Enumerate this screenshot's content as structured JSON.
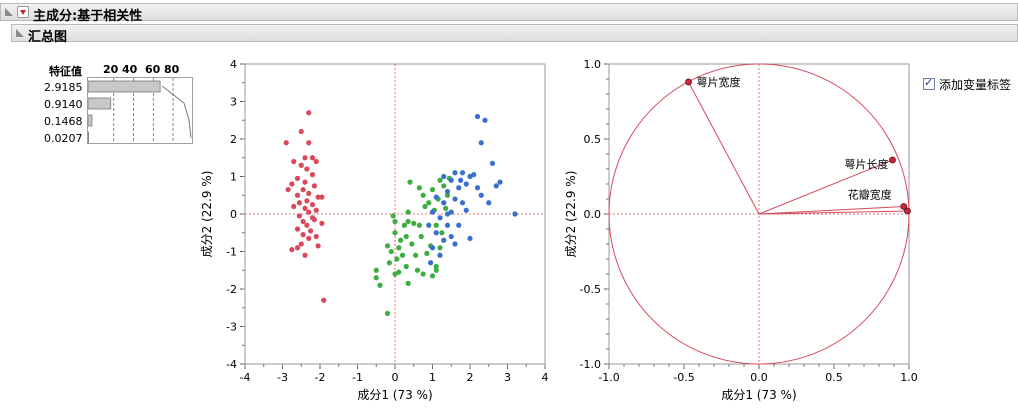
{
  "header": {
    "title": "主成分:基于相关性"
  },
  "section": {
    "title": "汇总图"
  },
  "eigen": {
    "header": "特征值",
    "scale_ticks": [
      "20",
      "40",
      "60",
      "80"
    ],
    "values": [
      "2.9185",
      "0.9140",
      "0.1468",
      "0.0207"
    ],
    "percents": [
      73,
      23,
      4,
      0.5
    ]
  },
  "checkbox": {
    "label": "添加变量标签",
    "checked": true
  },
  "chart_data": [
    {
      "type": "scatter",
      "xlabel": "成分1 (73 %)",
      "ylabel": "成分2 (22.9 %)",
      "xlim": [
        -4,
        4
      ],
      "ylim": [
        -4,
        4
      ],
      "xticks": [
        "-4",
        "-3",
        "-2",
        "-1",
        "0",
        "1",
        "2",
        "3",
        "4"
      ],
      "yticks": [
        "-4",
        "-3",
        "-2",
        "-1",
        "0",
        "1",
        "2",
        "3",
        "4"
      ],
      "series": [
        {
          "color": "#d9495b",
          "points": [
            [
              -2.3,
              2.7
            ],
            [
              -2.5,
              2.2
            ],
            [
              -2.3,
              1.9
            ],
            [
              -2.9,
              1.9
            ],
            [
              -2.2,
              1.5
            ],
            [
              -2.4,
              1.5
            ],
            [
              -2.7,
              1.4
            ],
            [
              -2.5,
              1.3
            ],
            [
              -2.1,
              1.4
            ],
            [
              -2.35,
              1.2
            ],
            [
              -2.2,
              1.05
            ],
            [
              -2.6,
              0.95
            ],
            [
              -2.4,
              0.85
            ],
            [
              -2.75,
              0.8
            ],
            [
              -2.15,
              0.75
            ],
            [
              -2.45,
              0.65
            ],
            [
              -2.3,
              0.55
            ],
            [
              -2.6,
              0.5
            ],
            [
              -2.05,
              0.45
            ],
            [
              -1.95,
              0.45
            ],
            [
              -2.35,
              0.35
            ],
            [
              -2.55,
              0.3
            ],
            [
              -2.2,
              0.25
            ],
            [
              -2.7,
              0.2
            ],
            [
              -2.4,
              0.15
            ],
            [
              -2.1,
              0.1
            ],
            [
              -2.3,
              0.05
            ],
            [
              -2.55,
              -0.05
            ],
            [
              -2.2,
              -0.1
            ],
            [
              -2.45,
              -0.2
            ],
            [
              -1.95,
              -0.25
            ],
            [
              -2.35,
              -0.3
            ],
            [
              -2.6,
              -0.4
            ],
            [
              -2.25,
              -0.45
            ],
            [
              -2.45,
              -0.55
            ],
            [
              -2.1,
              -0.6
            ],
            [
              -2.3,
              -0.65
            ],
            [
              -2.5,
              -0.8
            ],
            [
              -2.05,
              -0.85
            ],
            [
              -2.75,
              -0.95
            ],
            [
              -2.6,
              -0.9
            ],
            [
              -2.4,
              -1.1
            ],
            [
              -1.9,
              -2.3
            ],
            [
              -2.85,
              0.65
            ],
            [
              -2.15,
              -0.15
            ]
          ]
        },
        {
          "color": "#3dad3d",
          "points": [
            [
              -0.5,
              -1.5
            ],
            [
              -0.5,
              -1.7
            ],
            [
              -0.4,
              -1.9
            ],
            [
              -0.2,
              -2.65
            ],
            [
              -0.2,
              -0.85
            ],
            [
              -0.15,
              -1.3
            ],
            [
              -0.1,
              -1.0
            ],
            [
              0.0,
              -1.6
            ],
            [
              0.0,
              -0.2
            ],
            [
              0.0,
              -0.5
            ],
            [
              0.05,
              -1.2
            ],
            [
              0.1,
              -1.55
            ],
            [
              0.1,
              -0.9
            ],
            [
              0.15,
              -0.7
            ],
            [
              0.2,
              -1.1
            ],
            [
              0.25,
              -0.3
            ],
            [
              0.3,
              -1.4
            ],
            [
              0.3,
              -0.6
            ],
            [
              0.35,
              -0.2
            ],
            [
              0.35,
              -1.85
            ],
            [
              0.4,
              0.85
            ],
            [
              0.45,
              -0.8
            ],
            [
              0.5,
              -0.25
            ],
            [
              0.55,
              -1.1
            ],
            [
              0.6,
              -1.5
            ],
            [
              0.65,
              0.7
            ],
            [
              0.65,
              -0.3
            ],
            [
              0.7,
              -0.6
            ],
            [
              0.75,
              0.5
            ],
            [
              0.8,
              0.2
            ],
            [
              0.85,
              -1.05
            ],
            [
              0.9,
              0.3
            ],
            [
              0.95,
              -0.85
            ],
            [
              1.0,
              0.65
            ],
            [
              1.05,
              0.1
            ],
            [
              1.1,
              -1.4
            ],
            [
              1.1,
              -0.3
            ],
            [
              1.15,
              0.4
            ],
            [
              1.2,
              0.9
            ],
            [
              1.25,
              -0.5
            ],
            [
              1.3,
              0.75
            ],
            [
              1.35,
              0.15
            ],
            [
              1.4,
              0.5
            ],
            [
              1.1,
              -1.5
            ],
            [
              0.75,
              -1.6
            ],
            [
              0.35,
              0.05
            ],
            [
              -0.05,
              -0.05
            ],
            [
              1.0,
              -1.65
            ],
            [
              1.2,
              -0.9
            ],
            [
              1.45,
              0.95
            ]
          ]
        },
        {
          "color": "#3a6fd0",
          "points": [
            [
              2.2,
              2.6
            ],
            [
              2.4,
              2.5
            ],
            [
              2.3,
              1.9
            ],
            [
              2.6,
              1.35
            ],
            [
              2.8,
              0.85
            ],
            [
              2.7,
              0.75
            ],
            [
              2.0,
              1.0
            ],
            [
              2.3,
              0.5
            ],
            [
              2.5,
              0.3
            ],
            [
              3.2,
              0.0
            ],
            [
              1.8,
              1.1
            ],
            [
              1.9,
              0.8
            ],
            [
              1.6,
              1.1
            ],
            [
              1.5,
              0.9
            ],
            [
              1.7,
              0.7
            ],
            [
              1.4,
              0.6
            ],
            [
              1.6,
              0.4
            ],
            [
              1.3,
              0.3
            ],
            [
              1.8,
              0.3
            ],
            [
              1.5,
              0.05
            ],
            [
              1.9,
              0.1
            ],
            [
              1.2,
              -0.1
            ],
            [
              1.4,
              -0.3
            ],
            [
              1.7,
              -0.3
            ],
            [
              1.1,
              -0.5
            ],
            [
              1.3,
              -0.7
            ],
            [
              1.5,
              -0.6
            ],
            [
              1.0,
              -0.9
            ],
            [
              1.2,
              -1.1
            ],
            [
              1.6,
              -0.8
            ],
            [
              2.0,
              -0.65
            ],
            [
              2.2,
              0.7
            ],
            [
              1.1,
              0.45
            ],
            [
              1.0,
              0.05
            ],
            [
              0.9,
              -0.3
            ],
            [
              1.75,
              0.9
            ],
            [
              2.1,
              1.05
            ],
            [
              1.3,
              1.0
            ],
            [
              0.95,
              -1.3
            ],
            [
              1.4,
              0.0
            ]
          ]
        }
      ]
    },
    {
      "type": "scatter",
      "xlabel": "成分1 (73 %)",
      "ylabel": "成分2 (22.9 %)",
      "xlim": [
        -1.0,
        1.0
      ],
      "ylim": [
        -1.0,
        1.0
      ],
      "xticks": [
        "-1.0",
        "-0.5",
        "0.0",
        "0.5",
        "1.0"
      ],
      "yticks": [
        "-1.0",
        "-0.5",
        "0.0",
        "0.5",
        "1.0"
      ],
      "vectors": [
        {
          "name": "萼片宽度",
          "x": -0.47,
          "y": 0.88
        },
        {
          "name": "萼片长度",
          "x": 0.89,
          "y": 0.36
        },
        {
          "name": "花瓣宽度",
          "x": 0.965,
          "y": 0.05
        },
        {
          "name": "",
          "x": 0.99,
          "y": 0.02
        }
      ],
      "circle_radius": 1.0
    }
  ]
}
